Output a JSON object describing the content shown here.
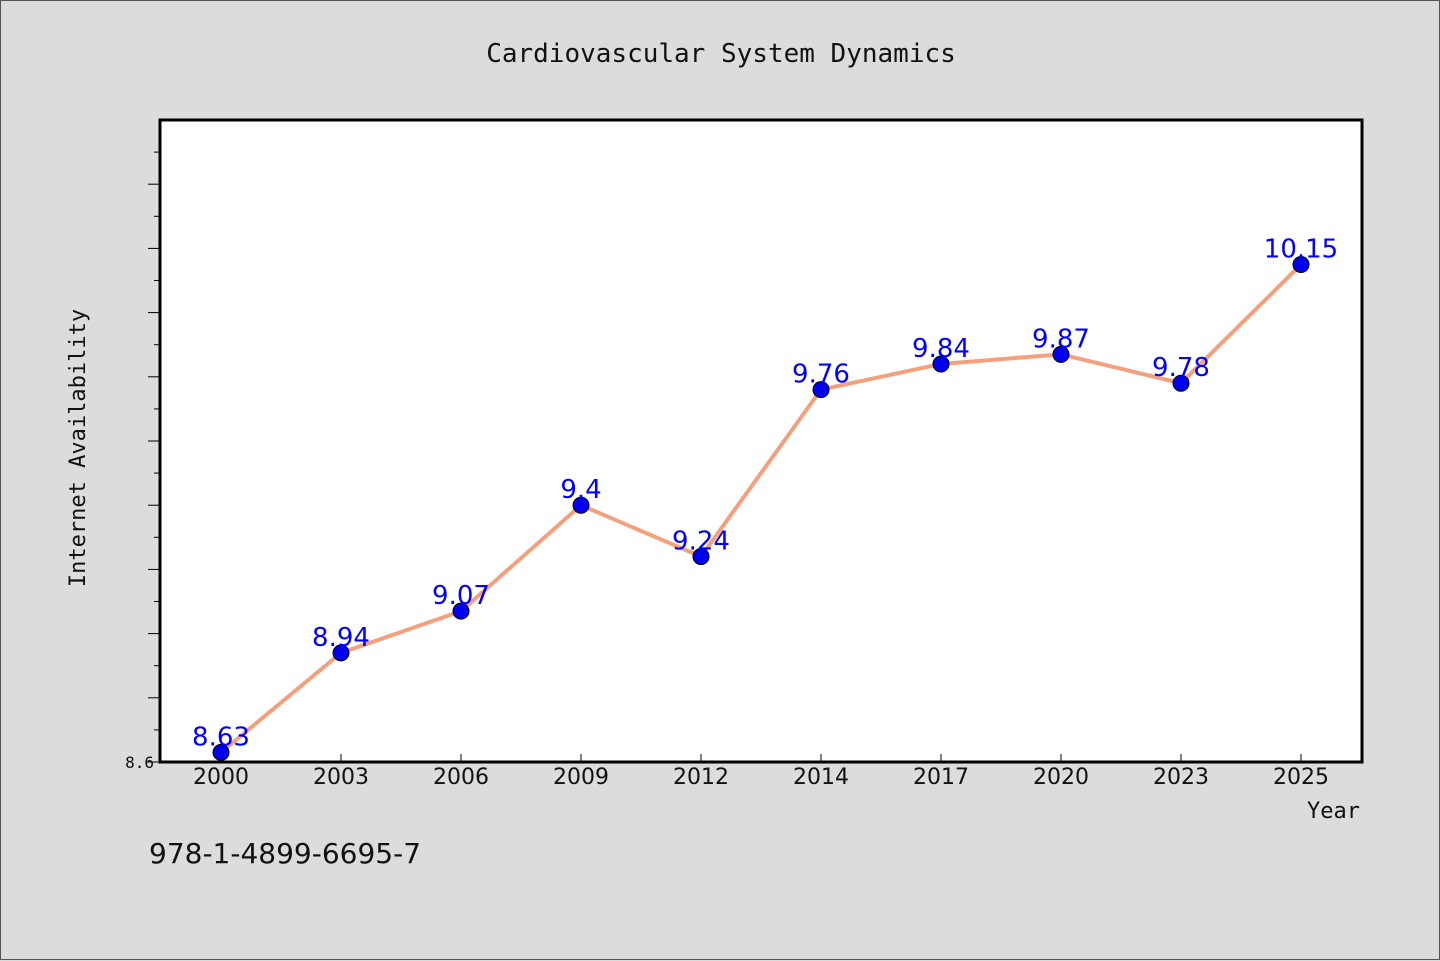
{
  "footer_code": "978-1-4899-6695-7",
  "colors": {
    "background": "#dcdcdc",
    "plot_background": "#ffffff",
    "line": "#f4a07c",
    "marker": "#0000ee",
    "data_label": "#0000ff"
  },
  "chart_data": {
    "type": "line",
    "title": "Cardiovascular System Dynamics",
    "xlabel": "Year",
    "ylabel": "Internet Availability",
    "x": [
      "2000",
      "2003",
      "2006",
      "2009",
      "2012",
      "2014",
      "2017",
      "2020",
      "2023",
      "2025"
    ],
    "series": [
      {
        "values": [
          8.63,
          8.94,
          9.07,
          9.4,
          9.24,
          9.76,
          9.84,
          9.87,
          9.78,
          10.15
        ],
        "data_labels": [
          "8.63",
          "8.94",
          "9.07",
          "9.4",
          "9.24",
          "9.76",
          "9.84",
          "9.87",
          "9.78",
          "10.15"
        ]
      }
    ],
    "ylim": [
      8.6,
      10.6
    ],
    "y_tick_labels": [
      "8.6"
    ],
    "grid": false,
    "legend": "none"
  }
}
